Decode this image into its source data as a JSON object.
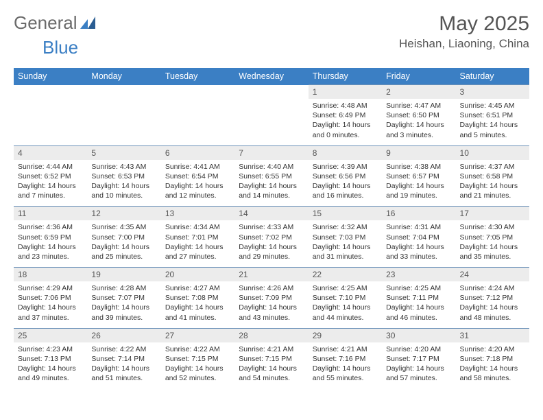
{
  "logo": {
    "text1": "General",
    "text2": "Blue"
  },
  "title": "May 2025",
  "location": "Heishan, Liaoning, China",
  "colors": {
    "header_bg": "#3b7fc4",
    "header_text": "#ffffff",
    "daynum_bg": "#ececec",
    "daynum_border": "#6a90b8",
    "body_text": "#333333",
    "title_text": "#555555",
    "logo_gray": "#6b6b6b",
    "logo_blue": "#3b7fc4"
  },
  "day_names": [
    "Sunday",
    "Monday",
    "Tuesday",
    "Wednesday",
    "Thursday",
    "Friday",
    "Saturday"
  ],
  "weeks": [
    [
      null,
      null,
      null,
      null,
      {
        "n": "1",
        "sr": "4:48 AM",
        "ss": "6:49 PM",
        "dl": "14 hours and 0 minutes."
      },
      {
        "n": "2",
        "sr": "4:47 AM",
        "ss": "6:50 PM",
        "dl": "14 hours and 3 minutes."
      },
      {
        "n": "3",
        "sr": "4:45 AM",
        "ss": "6:51 PM",
        "dl": "14 hours and 5 minutes."
      }
    ],
    [
      {
        "n": "4",
        "sr": "4:44 AM",
        "ss": "6:52 PM",
        "dl": "14 hours and 7 minutes."
      },
      {
        "n": "5",
        "sr": "4:43 AM",
        "ss": "6:53 PM",
        "dl": "14 hours and 10 minutes."
      },
      {
        "n": "6",
        "sr": "4:41 AM",
        "ss": "6:54 PM",
        "dl": "14 hours and 12 minutes."
      },
      {
        "n": "7",
        "sr": "4:40 AM",
        "ss": "6:55 PM",
        "dl": "14 hours and 14 minutes."
      },
      {
        "n": "8",
        "sr": "4:39 AM",
        "ss": "6:56 PM",
        "dl": "14 hours and 16 minutes."
      },
      {
        "n": "9",
        "sr": "4:38 AM",
        "ss": "6:57 PM",
        "dl": "14 hours and 19 minutes."
      },
      {
        "n": "10",
        "sr": "4:37 AM",
        "ss": "6:58 PM",
        "dl": "14 hours and 21 minutes."
      }
    ],
    [
      {
        "n": "11",
        "sr": "4:36 AM",
        "ss": "6:59 PM",
        "dl": "14 hours and 23 minutes."
      },
      {
        "n": "12",
        "sr": "4:35 AM",
        "ss": "7:00 PM",
        "dl": "14 hours and 25 minutes."
      },
      {
        "n": "13",
        "sr": "4:34 AM",
        "ss": "7:01 PM",
        "dl": "14 hours and 27 minutes."
      },
      {
        "n": "14",
        "sr": "4:33 AM",
        "ss": "7:02 PM",
        "dl": "14 hours and 29 minutes."
      },
      {
        "n": "15",
        "sr": "4:32 AM",
        "ss": "7:03 PM",
        "dl": "14 hours and 31 minutes."
      },
      {
        "n": "16",
        "sr": "4:31 AM",
        "ss": "7:04 PM",
        "dl": "14 hours and 33 minutes."
      },
      {
        "n": "17",
        "sr": "4:30 AM",
        "ss": "7:05 PM",
        "dl": "14 hours and 35 minutes."
      }
    ],
    [
      {
        "n": "18",
        "sr": "4:29 AM",
        "ss": "7:06 PM",
        "dl": "14 hours and 37 minutes."
      },
      {
        "n": "19",
        "sr": "4:28 AM",
        "ss": "7:07 PM",
        "dl": "14 hours and 39 minutes."
      },
      {
        "n": "20",
        "sr": "4:27 AM",
        "ss": "7:08 PM",
        "dl": "14 hours and 41 minutes."
      },
      {
        "n": "21",
        "sr": "4:26 AM",
        "ss": "7:09 PM",
        "dl": "14 hours and 43 minutes."
      },
      {
        "n": "22",
        "sr": "4:25 AM",
        "ss": "7:10 PM",
        "dl": "14 hours and 44 minutes."
      },
      {
        "n": "23",
        "sr": "4:25 AM",
        "ss": "7:11 PM",
        "dl": "14 hours and 46 minutes."
      },
      {
        "n": "24",
        "sr": "4:24 AM",
        "ss": "7:12 PM",
        "dl": "14 hours and 48 minutes."
      }
    ],
    [
      {
        "n": "25",
        "sr": "4:23 AM",
        "ss": "7:13 PM",
        "dl": "14 hours and 49 minutes."
      },
      {
        "n": "26",
        "sr": "4:22 AM",
        "ss": "7:14 PM",
        "dl": "14 hours and 51 minutes."
      },
      {
        "n": "27",
        "sr": "4:22 AM",
        "ss": "7:15 PM",
        "dl": "14 hours and 52 minutes."
      },
      {
        "n": "28",
        "sr": "4:21 AM",
        "ss": "7:15 PM",
        "dl": "14 hours and 54 minutes."
      },
      {
        "n": "29",
        "sr": "4:21 AM",
        "ss": "7:16 PM",
        "dl": "14 hours and 55 minutes."
      },
      {
        "n": "30",
        "sr": "4:20 AM",
        "ss": "7:17 PM",
        "dl": "14 hours and 57 minutes."
      },
      {
        "n": "31",
        "sr": "4:20 AM",
        "ss": "7:18 PM",
        "dl": "14 hours and 58 minutes."
      }
    ]
  ],
  "labels": {
    "sunrise": "Sunrise:",
    "sunset": "Sunset:",
    "daylight": "Daylight:"
  }
}
